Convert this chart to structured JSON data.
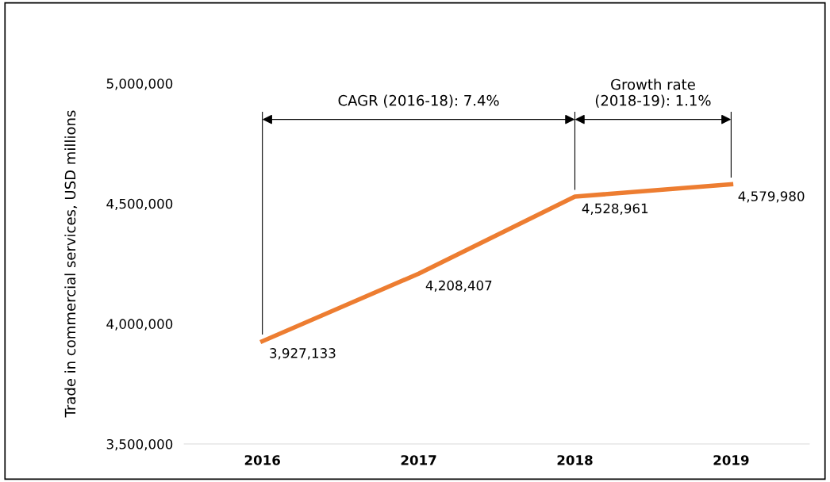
{
  "chart_data": {
    "type": "line",
    "ylabel": "Trade in commercial services, USD millions",
    "categories": [
      "2016",
      "2017",
      "2018",
      "2019"
    ],
    "series": [
      {
        "color": "#ed7d31",
        "values": [
          3927133,
          4208407,
          4528961,
          4579980
        ],
        "value_labels": [
          "3,927,133",
          "4,208,407",
          "4,528,961",
          "4,579,980"
        ]
      }
    ],
    "ylim": [
      3500000,
      5000000
    ],
    "yticks": [
      {
        "value": 3500000,
        "label": "3,500,000"
      },
      {
        "value": 4000000,
        "label": "4,000,000"
      },
      {
        "value": 4500000,
        "label": "4,500,000"
      },
      {
        "value": 5000000,
        "label": "5,000,000"
      }
    ],
    "annotations": [
      "CAGR (2016-18): 7.4%",
      "Growth rate\n(2018-19): 1.1%"
    ],
    "grid": false,
    "legend": false,
    "marker": "none",
    "line_style": "solid"
  }
}
